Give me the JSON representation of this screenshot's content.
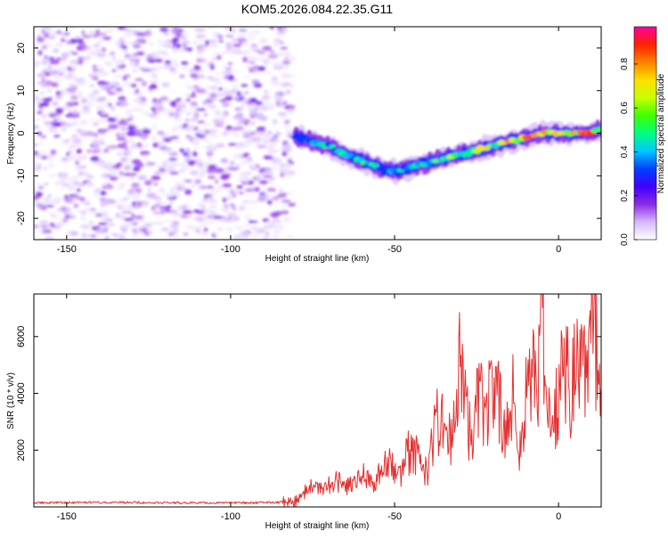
{
  "title": "KOM5.2026.084.22.35.G11",
  "chart_data": [
    {
      "type": "heatmap",
      "xlabel": "Height of straight line (km)",
      "ylabel": "Frequency (Hz)",
      "xlim": [
        -160,
        13
      ],
      "ylim": [
        -25,
        25
      ],
      "xticks": [
        -150,
        -100,
        -50,
        0
      ],
      "yticks": [
        -20,
        -10,
        0,
        10,
        20
      ],
      "noise_region_x": [
        -160,
        -84
      ],
      "ridge": {
        "x": [
          -80,
          -75,
          -70,
          -65,
          -60,
          -55,
          -50,
          -45,
          -40,
          -35,
          -30,
          -25,
          -20,
          -15,
          -10,
          -5,
          0,
          5,
          10,
          13
        ],
        "frequency": [
          -1,
          -2,
          -3,
          -5,
          -6.5,
          -8,
          -9,
          -8,
          -7,
          -6,
          -5,
          -4,
          -3,
          -2,
          -1,
          0,
          0,
          0,
          0,
          1
        ],
        "amplitude": [
          0.3,
          0.4,
          0.5,
          0.5,
          0.55,
          0.5,
          0.45,
          0.5,
          0.55,
          0.6,
          0.65,
          0.7,
          0.75,
          0.8,
          0.85,
          0.9,
          0.9,
          0.9,
          0.9,
          0.5
        ]
      },
      "colorbar": {
        "label": "Normalized spectral amplitude",
        "range": [
          0,
          0.97
        ],
        "ticks": [
          "0.0",
          "0.2",
          "0.4",
          "0.6",
          "0.8"
        ],
        "ticks_values": [
          0,
          0.2,
          0.4,
          0.6,
          0.8
        ],
        "colors": [
          "#ffffff",
          "#d6b8ff",
          "#8a2be2",
          "#4000ff",
          "#0040ff",
          "#00c8ff",
          "#00ff80",
          "#40ff00",
          "#c8ff00",
          "#ffe000",
          "#ff8000",
          "#ff2000",
          "#ff00a0"
        ]
      }
    },
    {
      "type": "line",
      "xlabel": "Height of straight line (km)",
      "ylabel": "SNR (10 * v/v)",
      "xlim": [
        -160,
        13
      ],
      "ylim": [
        0,
        7500
      ],
      "xticks": [
        -150,
        -100,
        -50,
        0
      ],
      "yticks": [
        2000,
        4000,
        6000
      ],
      "line_color": "#e53030",
      "series": [
        {
          "name": "SNR",
          "x": [
            -160,
            -140,
            -120,
            -100,
            -90,
            -84,
            -80,
            -76,
            -72,
            -68,
            -64,
            -60,
            -56,
            -52,
            -48,
            -46,
            -44,
            -40,
            -38,
            -36,
            -34,
            -32,
            -30,
            -28,
            -26,
            -24,
            -22,
            -20,
            -18,
            -16,
            -14,
            -12,
            -10,
            -8,
            -6,
            -5,
            -4,
            -2,
            0,
            2,
            4,
            6,
            8,
            10,
            11,
            12,
            13
          ],
          "values": [
            150,
            160,
            150,
            140,
            150,
            170,
            200,
            700,
            600,
            900,
            700,
            1200,
            900,
            1500,
            1000,
            1900,
            2000,
            1200,
            2800,
            3000,
            2200,
            2600,
            5000,
            3000,
            2800,
            4000,
            3200,
            4200,
            3800,
            2500,
            4200,
            1500,
            4400,
            4400,
            4800,
            7500,
            3500,
            2500,
            4000,
            5000,
            4200,
            5500,
            4800,
            6000,
            6800,
            4600,
            3800
          ]
        }
      ]
    }
  ]
}
